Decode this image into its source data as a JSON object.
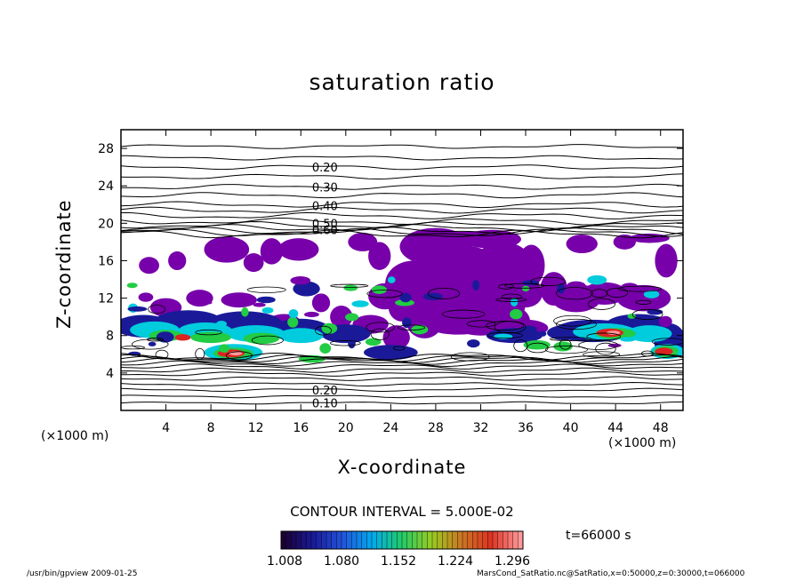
{
  "chart_data": {
    "type": "heatmap",
    "title": "saturation ratio",
    "xlabel": "X-coordinate",
    "ylabel": "Z-coordinate",
    "x_unit": "(×1000 m)",
    "x_unit_right": "(×1000 m)",
    "xlim": [
      0,
      50
    ],
    "ylim": [
      0,
      30
    ],
    "xticks": [
      4,
      8,
      12,
      16,
      20,
      24,
      28,
      32,
      36,
      40,
      44,
      48
    ],
    "yticks": [
      4,
      8,
      12,
      16,
      20,
      24,
      28
    ],
    "contour_labels": [
      {
        "text": "0.20",
        "x": 17.0,
        "y": 26.0
      },
      {
        "text": "0.30",
        "x": 17.0,
        "y": 23.9
      },
      {
        "text": "0.40",
        "x": 17.0,
        "y": 21.9
      },
      {
        "text": "0.50",
        "x": 17.0,
        "y": 20.0
      },
      {
        "text": "0.60",
        "x": 17.0,
        "y": 19.3
      },
      {
        "text": "0.10",
        "x": 17.0,
        "y": 0.8
      },
      {
        "text": "0.20",
        "x": 17.0,
        "y": 2.2
      }
    ],
    "colorbar": {
      "ticks": [
        "1.008",
        "1.080",
        "1.152",
        "1.224",
        "1.296"
      ],
      "colors": [
        "#1a0033",
        "#1a1a99",
        "#2255dd",
        "#00aaee",
        "#22cc66",
        "#99cc22",
        "#cc7722",
        "#dd3322",
        "#ff9999"
      ]
    },
    "colors": {
      "saturated": "#7700aa",
      "low": "#1a1a99",
      "mid": "#00ccdd",
      "green": "#22cc44",
      "high": "#dd2222",
      "peak": "#ff9999"
    }
  },
  "contour_interval": "CONTOUR INTERVAL = 5.000E-02",
  "timestamp": "t=66000 s",
  "footer_left": "/usr/bin/gpview  2009-01-25",
  "footer_right": "MarsCond_SatRatio.nc@SatRatio,x=0:50000,z=0:30000,t=066000"
}
